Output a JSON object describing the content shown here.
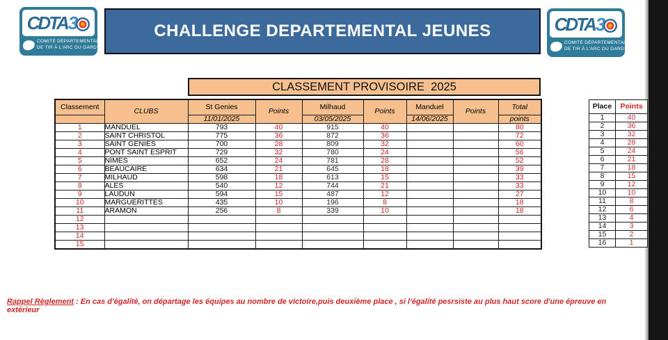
{
  "logo": {
    "brand": "CDTA",
    "brand_digit": "3",
    "subtitle_line1": "COMITÉ DÉPARTEMENTAL",
    "subtitle_line2": "DE TIR À L'ARC DU GARD"
  },
  "header": {
    "title": "CHALLENGE DEPARTEMENTAL JEUNES"
  },
  "banner": {
    "title": "CLASSEMENT PROVISOIRE  2025"
  },
  "main_table": {
    "header": {
      "classement": "Classement",
      "clubs": "CLUBS",
      "points": "Points",
      "event1_name": "St Genies",
      "event1_date": "11/01/2025",
      "event2_name": "Milhaud",
      "event2_date": "03/05/2025",
      "event3_name": "Manduel",
      "event3_date": "14/06/2025",
      "total": "Total",
      "total_sub": "points"
    },
    "rows": [
      {
        "rank": "1",
        "club": "MANDUEL",
        "s1": "793",
        "p1": "40",
        "s2": "915",
        "p2": "40",
        "s3": "",
        "p3": "",
        "total": "80"
      },
      {
        "rank": "2",
        "club": "SAINT CHRISTOL",
        "s1": "775",
        "p1": "36",
        "s2": "872",
        "p2": "36",
        "s3": "",
        "p3": "",
        "total": "72"
      },
      {
        "rank": "3",
        "club": "SAINT GENIES",
        "s1": "700",
        "p1": "28",
        "s2": "809",
        "p2": "32",
        "s3": "",
        "p3": "",
        "total": "60"
      },
      {
        "rank": "4",
        "club": "PONT SAINT ESPRIT",
        "s1": "729",
        "p1": "32",
        "s2": "780",
        "p2": "24",
        "s3": "",
        "p3": "",
        "total": "56"
      },
      {
        "rank": "5",
        "club": "NIMES",
        "s1": "652",
        "p1": "24",
        "s2": "781",
        "p2": "28",
        "s3": "",
        "p3": "",
        "total": "52"
      },
      {
        "rank": "6",
        "club": "BEAUCAIRE",
        "s1": "634",
        "p1": "21",
        "s2": "645",
        "p2": "18",
        "s3": "",
        "p3": "",
        "total": "39"
      },
      {
        "rank": "7",
        "club": "MILHAUD",
        "s1": "598",
        "p1": "18",
        "s2": "613",
        "p2": "15",
        "s3": "",
        "p3": "",
        "total": "33"
      },
      {
        "rank": "8",
        "club": "ALES",
        "s1": "540",
        "p1": "12",
        "s2": "744",
        "p2": "21",
        "s3": "",
        "p3": "",
        "total": "33"
      },
      {
        "rank": "9",
        "club": "LAUDUN",
        "s1": "594",
        "p1": "15",
        "s2": "487",
        "p2": "12",
        "s3": "",
        "p3": "",
        "total": "27"
      },
      {
        "rank": "10",
        "club": "MARGUERITTES",
        "s1": "435",
        "p1": "10",
        "s2": "196",
        "p2": "8",
        "s3": "",
        "p3": "",
        "total": "18"
      },
      {
        "rank": "11",
        "club": "ARAMON",
        "s1": "256",
        "p1": "8",
        "s2": "339",
        "p2": "10",
        "s3": "",
        "p3": "",
        "total": "18"
      },
      {
        "rank": "12",
        "club": "",
        "s1": "",
        "p1": "",
        "s2": "",
        "p2": "",
        "s3": "",
        "p3": "",
        "total": ""
      },
      {
        "rank": "13",
        "club": "",
        "s1": "",
        "p1": "",
        "s2": "",
        "p2": "",
        "s3": "",
        "p3": "",
        "total": ""
      },
      {
        "rank": "14",
        "club": "",
        "s1": "",
        "p1": "",
        "s2": "",
        "p2": "",
        "s3": "",
        "p3": "",
        "total": ""
      },
      {
        "rank": "15",
        "club": "",
        "s1": "",
        "p1": "",
        "s2": "",
        "p2": "",
        "s3": "",
        "p3": "",
        "total": ""
      }
    ]
  },
  "scale_table": {
    "place_header": "Place",
    "points_header": "Points",
    "rows": [
      [
        "1",
        "40"
      ],
      [
        "2",
        "36"
      ],
      [
        "3",
        "32"
      ],
      [
        "4",
        "28"
      ],
      [
        "5",
        "24"
      ],
      [
        "6",
        "21"
      ],
      [
        "7",
        "18"
      ],
      [
        "8",
        "15"
      ],
      [
        "9",
        "12"
      ],
      [
        "10",
        "10"
      ],
      [
        "11",
        "8"
      ],
      [
        "12",
        "6"
      ],
      [
        "13",
        "4"
      ],
      [
        "14",
        "3"
      ],
      [
        "15",
        "2"
      ],
      [
        "16",
        "1"
      ]
    ]
  },
  "footer": {
    "label": "Rappel Règlement",
    "text": " : En cas d'égalité, on départage les équipes au nombre de victoire,puis deuxième place , si l'égalité pesrsiste au plus haut score d'une épreuve en extérieur"
  },
  "colors": {
    "accent_blue": "#3d6a9d",
    "accent_orange": "#f5c08d",
    "accent_red": "#d02020",
    "logo_teal": "#2f7b99"
  }
}
